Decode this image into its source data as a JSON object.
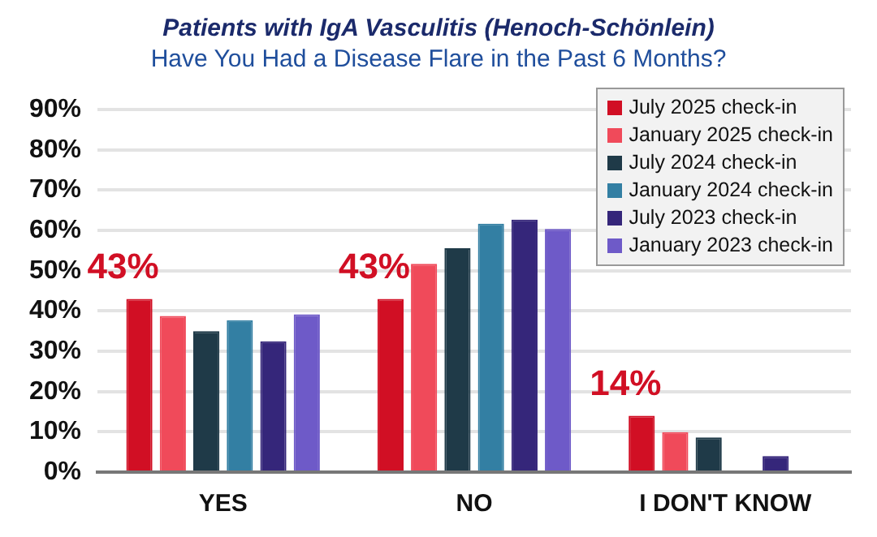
{
  "chart_data": {
    "type": "bar",
    "title": "Patients with IgA Vasculitis (Henoch-Schönlein)",
    "subtitle": "Have You Had a Disease Flare in the Past 6 Months?",
    "categories": [
      "YES",
      "NO",
      "I DON'T KNOW"
    ],
    "series": [
      {
        "name": "July 2025 check-in",
        "color": "#d10f24",
        "values": [
          43,
          43,
          14
        ],
        "value_labels": [
          "43%",
          "43%",
          "14%"
        ]
      },
      {
        "name": "January 2025 check-in",
        "color": "#f04a5a",
        "values": [
          38.8,
          51.7,
          9.9
        ]
      },
      {
        "name": "July 2024 check-in",
        "color": "#1f3a48",
        "values": [
          35,
          55.6,
          8.6
        ]
      },
      {
        "name": "January 2024 check-in",
        "color": "#337fa3",
        "values": [
          37.7,
          61.7,
          0
        ]
      },
      {
        "name": "July 2023 check-in",
        "color": "#35267a",
        "values": [
          32.5,
          62.7,
          4
        ]
      },
      {
        "name": "January 2023 check-in",
        "color": "#6e5ac8",
        "values": [
          39.2,
          60.4,
          0
        ]
      }
    ],
    "ylim": [
      0,
      90
    ],
    "yticks": [
      {
        "value": 0,
        "label": "0%"
      },
      {
        "value": 10,
        "label": "10%"
      },
      {
        "value": 20,
        "label": "20%"
      },
      {
        "value": 30,
        "label": "30%"
      },
      {
        "value": 40,
        "label": "40%"
      },
      {
        "value": 50,
        "label": "50%"
      },
      {
        "value": 60,
        "label": "60%"
      },
      {
        "value": 70,
        "label": "70%"
      },
      {
        "value": 80,
        "label": "80%"
      },
      {
        "value": 90,
        "label": "90%"
      }
    ],
    "grid": "y",
    "legend": "top right"
  }
}
